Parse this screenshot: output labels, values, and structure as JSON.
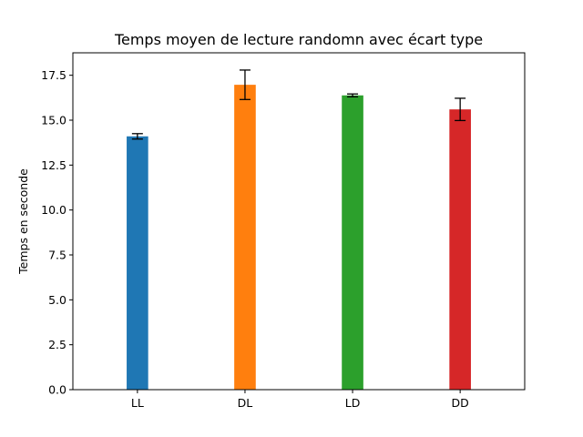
{
  "chart_data": {
    "type": "bar",
    "title": "Temps moyen de lecture randomn avec écart type",
    "xlabel": "",
    "ylabel": "Temps en seconde",
    "categories": [
      "LL",
      "DL",
      "LD",
      "DD"
    ],
    "values": [
      14.1,
      16.97,
      16.38,
      15.6
    ],
    "errors": [
      0.15,
      0.82,
      0.08,
      0.62
    ],
    "colors": [
      "#1f77b4",
      "#ff7f0e",
      "#2ca02c",
      "#d62728"
    ],
    "ylim": [
      0,
      18.75
    ],
    "yticks": [
      0.0,
      2.5,
      5.0,
      7.5,
      10.0,
      12.5,
      15.0,
      17.5
    ],
    "ytick_labels": [
      "0.0",
      "2.5",
      "5.0",
      "7.5",
      "10.0",
      "12.5",
      "15.0",
      "17.5"
    ],
    "grid": false,
    "error_bar_color": "#000000"
  }
}
